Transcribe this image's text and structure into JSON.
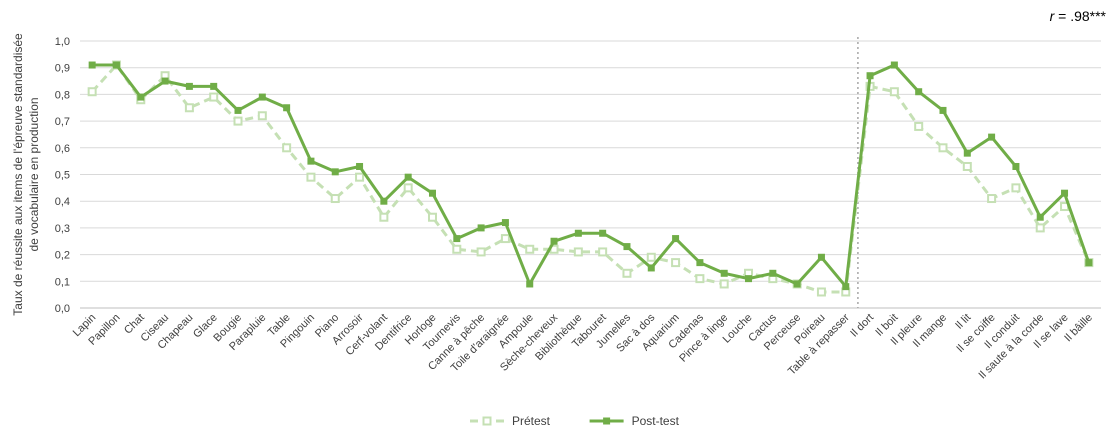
{
  "chart_data": {
    "type": "line",
    "annotation": {
      "r_symbol": "r",
      "r_text": " = .98***"
    },
    "ylabel_lines": [
      "Taux de réussite aux items de l'épreuve standardisée",
      "de vocabulaire en production"
    ],
    "ylim": [
      0,
      1
    ],
    "yticks": [
      "0,0",
      "0,1",
      "0,2",
      "0,3",
      "0,4",
      "0,5",
      "0,6",
      "0,7",
      "0,8",
      "0,9",
      "1,0"
    ],
    "grid": true,
    "legend_position": "bottom",
    "categories": [
      "Lapin",
      "Papillon",
      "Chat",
      "Ciseau",
      "Chapeau",
      "Glace",
      "Bougie",
      "Parapluie",
      "Table",
      "Pingouin",
      "Piano",
      "Arrosoir",
      "Cerf-volant",
      "Dentifrice",
      "Horloge",
      "Tournevis",
      "Canne à pêche",
      "Toile d'araignée",
      "Ampoule",
      "Sèche-cheveux",
      "Bibliothèque",
      "Tabouret",
      "Jumelles",
      "Sac à dos",
      "Aquarium",
      "Cadenas",
      "Pince à linge",
      "Louche",
      "Cactus",
      "Perceuse",
      "Poireau",
      "Table à repasser",
      "Il dort",
      "Il boit",
      "Il pleure",
      "Il mange",
      "Il lit",
      "Il se coiffe",
      "Il conduit",
      "Il saute à la corde",
      "Il se lave",
      "Il bâille"
    ],
    "separator_after_category": "Table à repasser",
    "series": [
      {
        "name": "Prétest",
        "color": "#c5e0b4",
        "style": "dashed",
        "marker": "open-square",
        "values": [
          0.81,
          0.91,
          0.78,
          0.87,
          0.75,
          0.79,
          0.7,
          0.72,
          0.6,
          0.49,
          0.41,
          0.49,
          0.34,
          0.45,
          0.34,
          0.22,
          0.21,
          0.26,
          0.22,
          0.22,
          0.21,
          0.21,
          0.13,
          0.19,
          0.17,
          0.11,
          0.09,
          0.13,
          0.11,
          0.09,
          0.06,
          0.06,
          0.83,
          0.81,
          0.68,
          0.6,
          0.53,
          0.41,
          0.45,
          0.3,
          0.38,
          0.17
        ]
      },
      {
        "name": "Post-test",
        "color": "#70ad47",
        "style": "solid",
        "marker": "filled-square",
        "values": [
          0.91,
          0.91,
          0.79,
          0.85,
          0.83,
          0.83,
          0.74,
          0.79,
          0.75,
          0.55,
          0.51,
          0.53,
          0.4,
          0.49,
          0.43,
          0.26,
          0.3,
          0.32,
          0.09,
          0.25,
          0.28,
          0.28,
          0.23,
          0.15,
          0.26,
          0.17,
          0.13,
          0.11,
          0.13,
          0.09,
          0.19,
          0.08,
          0.87,
          0.91,
          0.81,
          0.74,
          0.58,
          0.64,
          0.53,
          0.34,
          0.43,
          0.17
        ]
      }
    ]
  }
}
